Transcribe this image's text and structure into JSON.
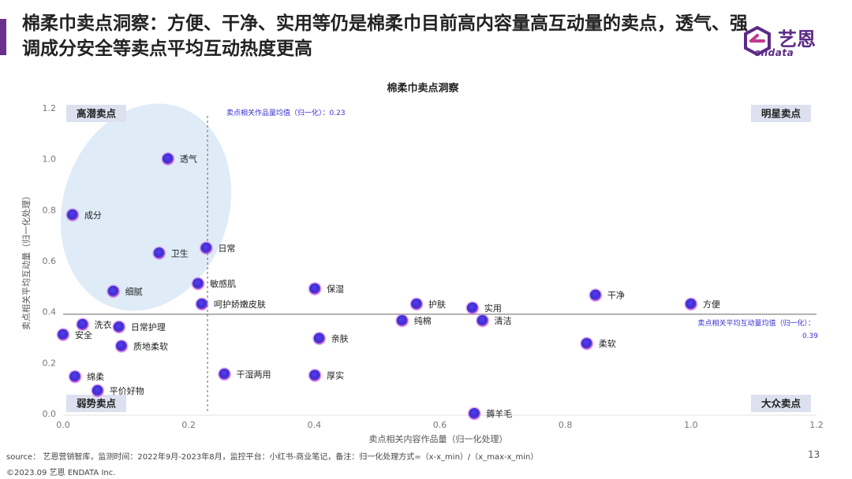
{
  "header": {
    "title": "棉柔巾卖点洞察：方便、干净、实用等仍是棉柔巾目前高内容量高互动量的卖点，透气、强调成分安全等卖点平均互动热度更高"
  },
  "logo": {
    "cn": "艺恩",
    "en": "endata"
  },
  "chart_data": {
    "type": "scatter",
    "title": "棉柔巾卖点洞察",
    "xlabel": "卖点相关内容作品量（归一化处理）",
    "ylabel": "卖点相关平均互动量（归一化处理）",
    "xlim": [
      0,
      1.2
    ],
    "ylim": [
      0,
      1.2
    ],
    "x_ticks": [
      "0.0",
      "0.2",
      "0.4",
      "0.6",
      "0.8",
      "1.0",
      "1.2"
    ],
    "y_ticks": [
      "0.0",
      "0.2",
      "0.4",
      "0.6",
      "0.8",
      "1.0",
      "1.2"
    ],
    "x_ref": {
      "value": 0.23,
      "label": "卖点相关作品量均值（归一化）：0.23"
    },
    "y_ref": {
      "value": 0.39,
      "label": "卖点相关平均互动量均值（归一化）：",
      "value_label": "0.39"
    },
    "quadrants": {
      "top_left": "高潜卖点",
      "top_right": "明星卖点",
      "bottom_left": "弱势卖点",
      "bottom_right": "大众卖点"
    },
    "colors": {
      "point": "#3a2fd0",
      "point_edge": "#c14fd6",
      "ellipse": "#dbeaf6",
      "ref_line": "#666666",
      "label_box": "#dde1ef"
    },
    "points": [
      {
        "label": "透气",
        "x": 0.167,
        "y": 1.0
      },
      {
        "label": "成分",
        "x": 0.015,
        "y": 0.78
      },
      {
        "label": "卫生",
        "x": 0.153,
        "y": 0.63
      },
      {
        "label": "日常",
        "x": 0.228,
        "y": 0.65
      },
      {
        "label": "敏感肌",
        "x": 0.215,
        "y": 0.51
      },
      {
        "label": "细腻",
        "x": 0.08,
        "y": 0.48
      },
      {
        "label": "呵护娇嫩皮肤",
        "x": 0.221,
        "y": 0.43
      },
      {
        "label": "洗衣",
        "x": 0.031,
        "y": 0.35
      },
      {
        "label": "日常护理",
        "x": 0.089,
        "y": 0.34
      },
      {
        "label": "安全",
        "x": 0.0,
        "y": 0.31
      },
      {
        "label": "质地柔软",
        "x": 0.093,
        "y": 0.265
      },
      {
        "label": "绵柔",
        "x": 0.019,
        "y": 0.145
      },
      {
        "label": "平价好物",
        "x": 0.055,
        "y": 0.09
      },
      {
        "label": "干湿两用",
        "x": 0.257,
        "y": 0.155
      },
      {
        "label": "保湿",
        "x": 0.401,
        "y": 0.49
      },
      {
        "label": "亲肤",
        "x": 0.408,
        "y": 0.295
      },
      {
        "label": "厚实",
        "x": 0.401,
        "y": 0.15
      },
      {
        "label": "护肤",
        "x": 0.563,
        "y": 0.43
      },
      {
        "label": "纯棉",
        "x": 0.54,
        "y": 0.365
      },
      {
        "label": "实用",
        "x": 0.652,
        "y": 0.415
      },
      {
        "label": "清洁",
        "x": 0.668,
        "y": 0.365
      },
      {
        "label": "薅羊毛",
        "x": 0.655,
        "y": 0.0
      },
      {
        "label": "干净",
        "x": 0.848,
        "y": 0.465
      },
      {
        "label": "方便",
        "x": 1.0,
        "y": 0.43
      },
      {
        "label": "柔软",
        "x": 0.834,
        "y": 0.275
      }
    ]
  },
  "footer": {
    "source": "source： 艺恩营销智库，监测时间：2022年9月-2023年8月，监控平台：小红书-商业笔记，备注：归一化处理方式=（x-x_min）/（x_max-x_min）",
    "copyright": "©2023.09 艺恩 ENDATA Inc.",
    "page_number": "13"
  }
}
